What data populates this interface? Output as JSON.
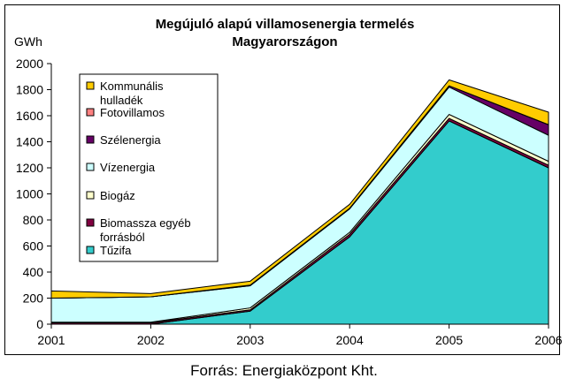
{
  "chart_data": {
    "type": "area",
    "stacked": true,
    "title_line1": "Megújuló alapú villamosenergia termelés",
    "title_line2": "Magyarországon",
    "ylabel": "GWh",
    "xlabel": "",
    "ylim": [
      0,
      2000
    ],
    "yticks": [
      0,
      200,
      400,
      600,
      800,
      1000,
      1200,
      1400,
      1600,
      1800,
      2000
    ],
    "x": [
      "2001",
      "2002",
      "2003",
      "2004",
      "2005",
      "2006"
    ],
    "grid": false,
    "legend_position": "left-inside",
    "series": [
      {
        "name": "Tűzifa",
        "color": "#33CCCC",
        "values": [
          0,
          0,
          100,
          670,
          1560,
          1200
        ]
      },
      {
        "name": "Biomassza egyéb forrásból",
        "color": "#800040",
        "values": [
          10,
          10,
          10,
          20,
          20,
          20
        ]
      },
      {
        "name": "Biogáz",
        "color": "#FFFFCC",
        "values": [
          5,
          5,
          15,
          15,
          30,
          30
        ]
      },
      {
        "name": "Vízenergia",
        "color": "#CCFFFF",
        "values": [
          185,
          195,
          170,
          180,
          210,
          200
        ]
      },
      {
        "name": "Szélenergia",
        "color": "#660066",
        "values": [
          0,
          0,
          5,
          5,
          10,
          80
        ]
      },
      {
        "name": "Fotovillamos",
        "color": "#FF8080",
        "values": [
          0,
          0,
          0,
          0,
          0,
          2
        ]
      },
      {
        "name": "Kommunális hulladék",
        "color": "#FFCC00",
        "values": [
          55,
          25,
          30,
          30,
          45,
          95
        ]
      }
    ],
    "legend_labels": [
      [
        "Kommunális",
        "hulladék"
      ],
      [
        "Fotovillamos"
      ],
      [
        "Szélenergia"
      ],
      [
        "Vízenergia"
      ],
      [
        "Biogáz"
      ],
      [
        "Biomassza egyéb",
        "forrásból"
      ],
      [
        "Tűzifa"
      ]
    ]
  },
  "source_text": "Forrás: Energiaközpont Kht."
}
